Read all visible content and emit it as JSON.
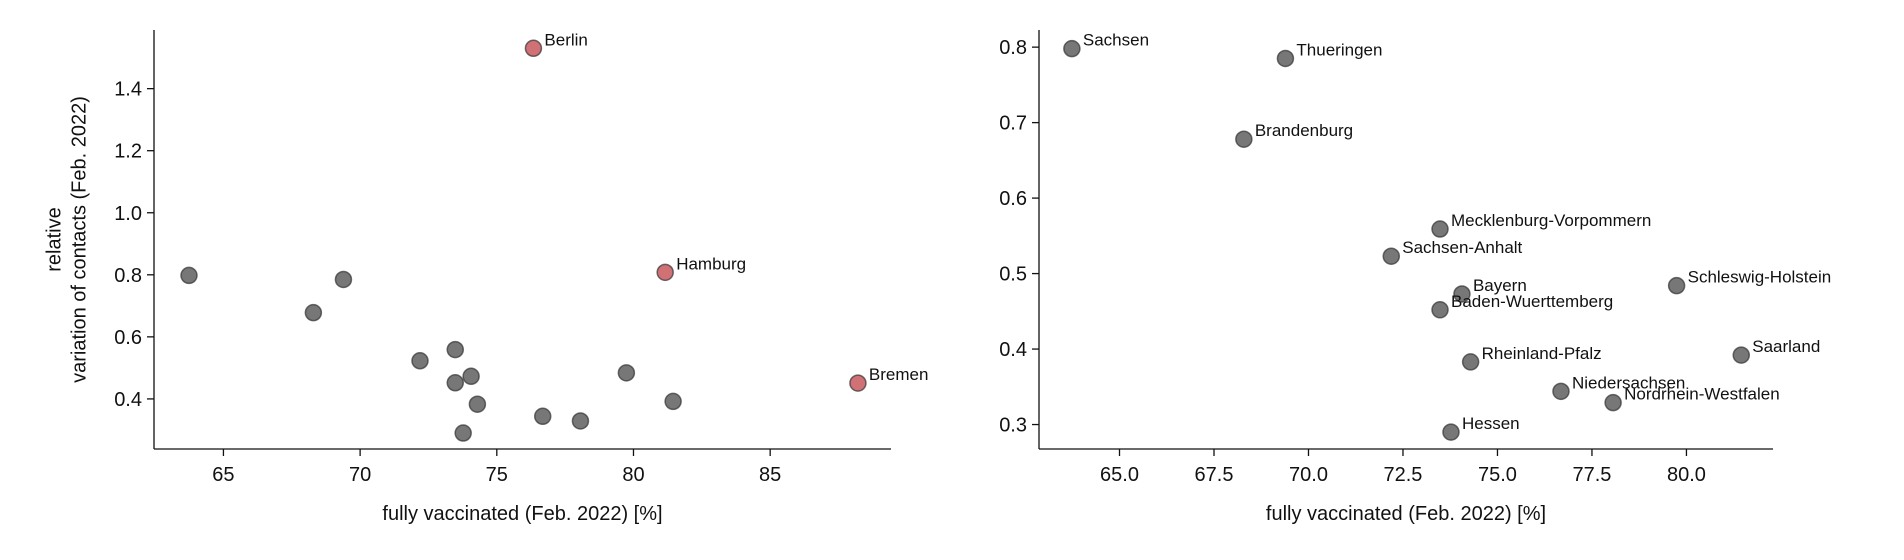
{
  "chart_data": [
    {
      "type": "scatter",
      "xlabel": "fully vaccinated (Feb. 2022) [%]",
      "ylabel": [
        "relative",
        "variation of contacts (Feb. 2022)"
      ],
      "xlim": [
        62.46,
        89.42
      ],
      "ylim": [
        0.2386,
        1.589
      ],
      "xticks": [
        65,
        70,
        75,
        80,
        85
      ],
      "yticks": [
        0.4,
        0.6,
        0.8,
        {
          "value": 1,
          "label": "1.0"
        },
        1.2,
        1.4
      ],
      "series": [
        {
          "color": "#555555",
          "x": [
            63.74,
            69.39,
            68.29,
            73.48,
            72.19,
            74.06,
            73.48,
            79.74,
            81.45,
            74.29,
            76.68,
            78.06,
            73.77
          ],
          "values": [
            0.798,
            0.785,
            0.678,
            0.559,
            0.523,
            0.473,
            0.452,
            0.484,
            0.392,
            0.383,
            0.344,
            0.329,
            0.29
          ]
        },
        {
          "color": "#c44e52",
          "x": [
            76.34,
            81.16,
            88.21
          ],
          "values": [
            1.53,
            0.808,
            0.451
          ],
          "labels": [
            "Berlin",
            "Hamburg",
            "Bremen"
          ]
        }
      ]
    },
    {
      "type": "scatter",
      "xlabel": "fully vaccinated (Feb. 2022) [%]",
      "xlim": [
        62.87,
        82.29
      ],
      "ylim": [
        0.2676,
        0.8227
      ],
      "xticks": [
        {
          "value": 65,
          "label": "65.0"
        },
        {
          "value": 67.5,
          "label": "67.5"
        },
        {
          "value": 70,
          "label": "70.0"
        },
        {
          "value": 72.5,
          "label": "72.5"
        },
        {
          "value": 75,
          "label": "75.0"
        },
        {
          "value": 77.5,
          "label": "77.5"
        },
        {
          "value": 80,
          "label": "80.0"
        }
      ],
      "yticks": [
        0.3,
        0.4,
        0.5,
        0.6,
        0.7,
        0.8
      ],
      "series": [
        {
          "color": "#555555",
          "x": [
            63.74,
            69.39,
            68.29,
            73.48,
            72.19,
            74.06,
            73.48,
            79.74,
            81.45,
            74.29,
            76.68,
            78.06,
            73.77
          ],
          "values": [
            0.798,
            0.785,
            0.678,
            0.559,
            0.523,
            0.473,
            0.452,
            0.484,
            0.392,
            0.383,
            0.344,
            0.329,
            0.29
          ],
          "labels": [
            "Sachsen",
            "Thueringen",
            "Brandenburg",
            "Mecklenburg-Vorpommern",
            "Sachsen-Anhalt",
            "Bayern",
            "Baden-Wuerttemberg",
            "Schleswig-Holstein",
            "Saarland",
            "Rheinland-Pfalz",
            "Niedersachsen",
            "Nordrhein-Westfalen",
            "Hessen"
          ]
        }
      ]
    }
  ]
}
